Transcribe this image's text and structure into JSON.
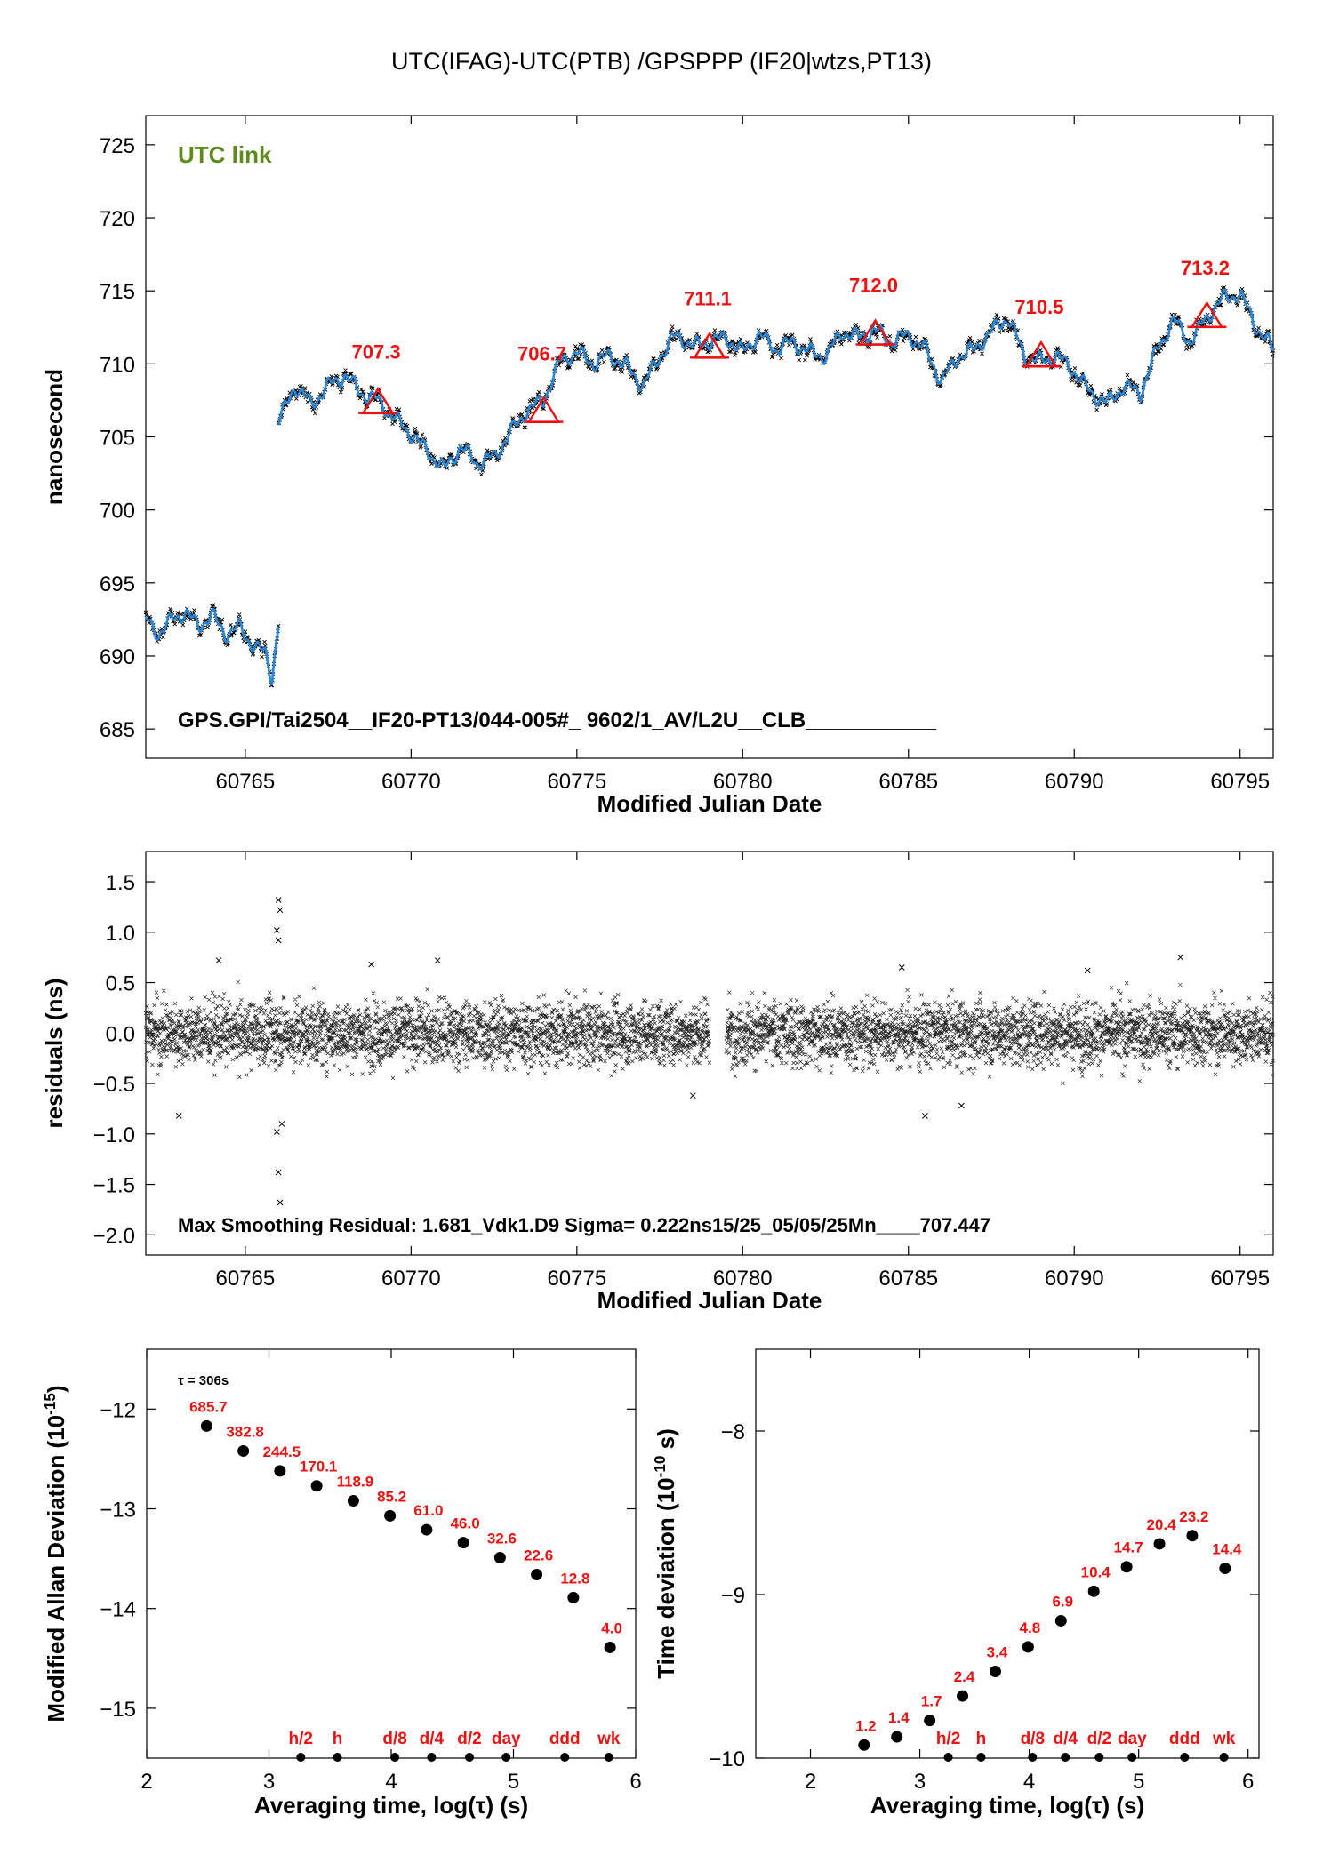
{
  "page_title": "UTC(IFAG)-UTC(PTB)  /GPSPPP  (IF20|wtzs,PT13)",
  "colors": {
    "data_black": "#000000",
    "fit_blue": "#2a87d6",
    "annotation_red": "#ee1111",
    "utc_link_green": "#5f8a1c"
  },
  "chart_data": [
    {
      "type": "line",
      "title": "",
      "xlabel": "Modified Julian Date",
      "ylabel": "nanosecond",
      "xlim": [
        60762,
        60796
      ],
      "ylim": [
        683,
        727
      ],
      "x_ticks": [
        60765,
        60770,
        60775,
        60780,
        60785,
        60790,
        60795
      ],
      "y_ticks": [
        685,
        690,
        695,
        700,
        705,
        710,
        715,
        720,
        725
      ],
      "corner_label": "UTC link",
      "footer_text": "GPS.GPI/Tai2504__IF20-PT13/044-005#_  9602/1_AV/L2U__CLB___________",
      "series": [
        {
          "type": "line",
          "x": [
            60762.0,
            60762.4,
            60762.8,
            60763.2,
            60763.6,
            60764.0,
            60764.4,
            60764.8,
            60765.2,
            60765.6,
            60765.8,
            60766.0
          ],
          "y": [
            692.5,
            691.5,
            692.5,
            693.0,
            692.0,
            692.8,
            691.5,
            692.0,
            690.8,
            690.2,
            688.5,
            692.2
          ]
        },
        {
          "type": "line",
          "x": [
            60766.0,
            60766.5,
            60767.0,
            60767.5,
            60768.0,
            60768.5,
            60769.0,
            60769.5,
            60770.0,
            60770.5,
            60771.0,
            60771.5,
            60772.0,
            60772.5,
            60773.0,
            60773.5,
            60774.0,
            60774.5,
            60775.0,
            60775.5,
            60776.0,
            60776.5,
            60777.0,
            60777.5,
            60778.0,
            60778.5,
            60779.0,
            60779.5,
            60780.0,
            60780.5,
            60781.0,
            60781.5,
            60782.0,
            60782.5,
            60783.0,
            60783.5,
            60784.0,
            60784.5,
            60785.0,
            60785.5,
            60786.0,
            60786.5,
            60787.0,
            60787.5,
            60788.0,
            60788.5,
            60789.0,
            60789.5,
            60790.0,
            60790.5,
            60791.0,
            60791.5,
            60792.0,
            60792.5,
            60793.0,
            60793.5,
            60794.0,
            60794.5,
            60795.0,
            60795.5,
            60796.0
          ],
          "y": [
            706.0,
            708.5,
            707.2,
            708.5,
            709.2,
            708.0,
            707.5,
            706.3,
            705.2,
            704.0,
            702.8,
            704.3,
            703.2,
            703.6,
            705.3,
            706.8,
            707.5,
            710.2,
            710.8,
            710.0,
            710.6,
            709.8,
            708.5,
            710.5,
            712.0,
            711.2,
            711.5,
            711.8,
            710.8,
            712.0,
            711.0,
            711.5,
            710.8,
            710.5,
            712.2,
            711.8,
            712.3,
            711.5,
            712.0,
            711.0,
            708.8,
            710.5,
            711.0,
            712.2,
            713.2,
            710.5,
            710.2,
            710.5,
            709.5,
            708.0,
            707.3,
            708.5,
            708.0,
            711.0,
            713.0,
            711.5,
            713.2,
            714.5,
            714.8,
            712.5,
            711.0
          ]
        }
      ],
      "markers": [
        {
          "x": 60769.0,
          "y": 707.3,
          "label": "707.3"
        },
        {
          "x": 60774.0,
          "y": 706.7,
          "label": "706.7"
        },
        {
          "x": 60779.0,
          "y": 711.1,
          "label": "711.1"
        },
        {
          "x": 60784.0,
          "y": 712.0,
          "label": "712.0"
        },
        {
          "x": 60789.0,
          "y": 710.5,
          "label": "710.5"
        },
        {
          "x": 60794.0,
          "y": 713.2,
          "label": "713.2"
        }
      ]
    },
    {
      "type": "scatter",
      "title": "",
      "xlabel": "Modified Julian Date",
      "ylabel": "residuals (ns)",
      "xlim": [
        60762,
        60796
      ],
      "ylim": [
        -2.2,
        1.8
      ],
      "x_ticks": [
        60765,
        60770,
        60775,
        60780,
        60785,
        60790,
        60795
      ],
      "y_ticks": [
        -2.0,
        -1.5,
        -1.0,
        -0.5,
        0.0,
        0.5,
        1.0,
        1.5
      ],
      "y_tick_labels": [
        "−2.0",
        "−1.5",
        "−1.0",
        "−0.5",
        "0.0",
        "0.5",
        "1.0",
        "1.5"
      ],
      "sigma_ns": 0.222,
      "max_residual_ns": 1.681,
      "gap_x": [
        60779.0,
        60779.5
      ],
      "outliers": [
        {
          "x": 60766.0,
          "y": 1.32
        },
        {
          "x": 60766.05,
          "y": 1.22
        },
        {
          "x": 60765.95,
          "y": 1.02
        },
        {
          "x": 60766.0,
          "y": 0.92
        },
        {
          "x": 60766.1,
          "y": -0.9
        },
        {
          "x": 60766.0,
          "y": -1.38
        },
        {
          "x": 60766.05,
          "y": -1.68
        },
        {
          "x": 60765.95,
          "y": -0.98
        },
        {
          "x": 60764.2,
          "y": 0.72
        },
        {
          "x": 60768.8,
          "y": 0.68
        },
        {
          "x": 60770.8,
          "y": 0.72
        },
        {
          "x": 60785.5,
          "y": -0.82
        },
        {
          "x": 60784.8,
          "y": 0.65
        },
        {
          "x": 60793.2,
          "y": 0.75
        },
        {
          "x": 60763.0,
          "y": -0.82
        },
        {
          "x": 60778.5,
          "y": -0.62
        },
        {
          "x": 60786.6,
          "y": -0.72
        },
        {
          "x": 60790.4,
          "y": 0.62
        }
      ],
      "footer_text": "Max Smoothing Residual: 1.681_Vdk1.D9  Sigma= 0.222ns15/25_05/05/25Mn____707.447"
    },
    {
      "type": "scatter",
      "title": "",
      "xlabel": "Averaging time, log(τ) (s)",
      "ylabel": "Modified Allan Deviation (10",
      "ylabel_exponent": "-15",
      "ylabel_suffix": ")",
      "xlim": [
        2,
        6
      ],
      "ylim": [
        -15.5,
        -11.4
      ],
      "x_ticks": [
        2,
        3,
        4,
        5,
        6
      ],
      "y_ticks": [
        -15,
        -14,
        -13,
        -12
      ],
      "y_tick_labels": [
        "−15",
        "−14",
        "−13",
        "−12"
      ],
      "tau_note": "τ = 306s",
      "points": [
        {
          "x": 2.49,
          "y": -12.17,
          "label": "685.7"
        },
        {
          "x": 2.79,
          "y": -12.42,
          "label": "382.8"
        },
        {
          "x": 3.09,
          "y": -12.62,
          "label": "244.5"
        },
        {
          "x": 3.39,
          "y": -12.77,
          "label": "170.1"
        },
        {
          "x": 3.69,
          "y": -12.92,
          "label": "118.9"
        },
        {
          "x": 3.99,
          "y": -13.07,
          "label": "85.2"
        },
        {
          "x": 4.29,
          "y": -13.21,
          "label": "61.0"
        },
        {
          "x": 4.59,
          "y": -13.34,
          "label": "46.0"
        },
        {
          "x": 4.89,
          "y": -13.49,
          "label": "32.6"
        },
        {
          "x": 5.19,
          "y": -13.66,
          "label": "22.6"
        },
        {
          "x": 5.49,
          "y": -13.89,
          "label": "12.8"
        },
        {
          "x": 5.79,
          "y": -14.39,
          "label": "4.0"
        }
      ],
      "markers": [
        {
          "x": 3.26,
          "label": "h/2"
        },
        {
          "x": 3.56,
          "label": "h"
        },
        {
          "x": 4.03,
          "label": "d/8"
        },
        {
          "x": 4.33,
          "label": "d/4"
        },
        {
          "x": 4.64,
          "label": "d/2"
        },
        {
          "x": 4.94,
          "label": "day"
        },
        {
          "x": 5.42,
          "label": "ddd"
        },
        {
          "x": 5.78,
          "label": "wk"
        }
      ]
    },
    {
      "type": "scatter",
      "title": "",
      "xlabel": "Averaging time, log(τ) (s)",
      "ylabel": "Time deviation (10",
      "ylabel_exponent": "-10",
      "ylabel_suffix": " s)",
      "xlim": [
        1.5,
        6.1
      ],
      "ylim": [
        -10.0,
        -7.5
      ],
      "x_ticks": [
        2,
        3,
        4,
        5,
        6
      ],
      "y_ticks": [
        -10,
        -9,
        -8
      ],
      "y_tick_labels": [
        "−10",
        "−9",
        "−8"
      ],
      "points": [
        {
          "x": 2.49,
          "y": -9.92,
          "label": "1.2"
        },
        {
          "x": 2.79,
          "y": -9.87,
          "label": "1.4"
        },
        {
          "x": 3.09,
          "y": -9.77,
          "label": "1.7"
        },
        {
          "x": 3.39,
          "y": -9.62,
          "label": "2.4"
        },
        {
          "x": 3.69,
          "y": -9.47,
          "label": "3.4"
        },
        {
          "x": 3.99,
          "y": -9.32,
          "label": "4.8"
        },
        {
          "x": 4.29,
          "y": -9.16,
          "label": "6.9"
        },
        {
          "x": 4.59,
          "y": -8.98,
          "label": "10.4"
        },
        {
          "x": 4.89,
          "y": -8.83,
          "label": "14.7"
        },
        {
          "x": 5.19,
          "y": -8.69,
          "label": "20.4"
        },
        {
          "x": 5.49,
          "y": -8.64,
          "label": "23.2"
        },
        {
          "x": 5.79,
          "y": -8.84,
          "label": "14.4"
        }
      ],
      "markers": [
        {
          "x": 3.26,
          "label": "h/2"
        },
        {
          "x": 3.56,
          "label": "h"
        },
        {
          "x": 4.03,
          "label": "d/8"
        },
        {
          "x": 4.33,
          "label": "d/4"
        },
        {
          "x": 4.64,
          "label": "d/2"
        },
        {
          "x": 4.94,
          "label": "day"
        },
        {
          "x": 5.42,
          "label": "ddd"
        },
        {
          "x": 5.78,
          "label": "wk"
        }
      ]
    }
  ]
}
